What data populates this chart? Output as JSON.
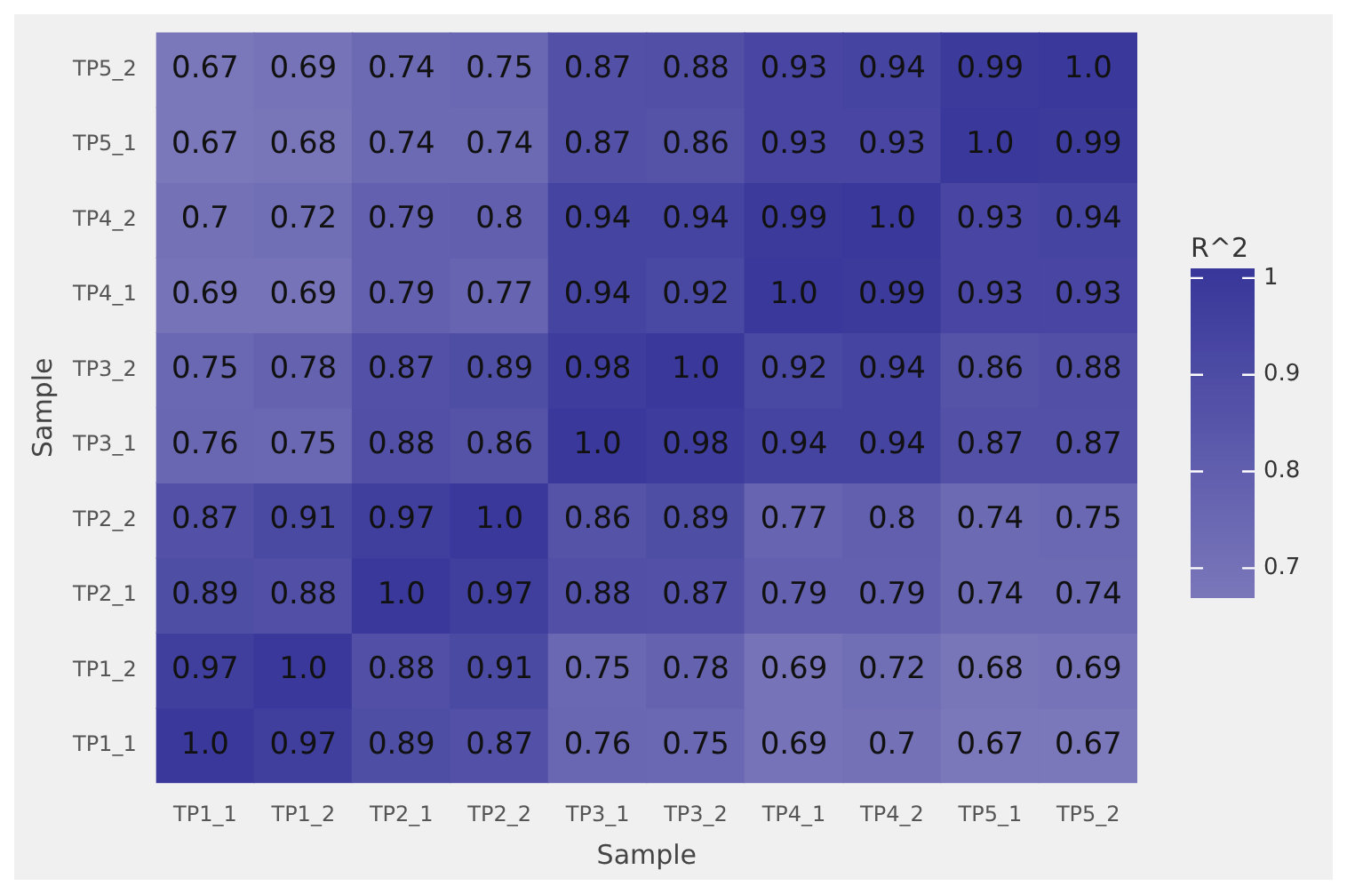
{
  "chart_data": {
    "type": "heatmap",
    "xlabel": "Sample",
    "ylabel": "Sample",
    "clabel": "R^2",
    "categories": [
      "TP1_1",
      "TP1_2",
      "TP2_1",
      "TP2_2",
      "TP3_1",
      "TP3_2",
      "TP4_1",
      "TP4_2",
      "TP5_1",
      "TP5_2"
    ],
    "y_categories": [
      "TP5_2",
      "TP5_1",
      "TP4_2",
      "TP4_1",
      "TP3_2",
      "TP3_1",
      "TP2_2",
      "TP2_1",
      "TP1_2",
      "TP1_1"
    ],
    "cells": [
      [
        0.67,
        0.69,
        0.74,
        0.75,
        0.87,
        0.88,
        0.93,
        0.94,
        0.99,
        1.0
      ],
      [
        0.67,
        0.68,
        0.74,
        0.74,
        0.87,
        0.86,
        0.93,
        0.93,
        1.0,
        0.99
      ],
      [
        0.7,
        0.72,
        0.79,
        0.8,
        0.94,
        0.94,
        0.99,
        1.0,
        0.93,
        0.94
      ],
      [
        0.69,
        0.69,
        0.79,
        0.77,
        0.94,
        0.92,
        1.0,
        0.99,
        0.93,
        0.93
      ],
      [
        0.75,
        0.78,
        0.87,
        0.89,
        0.98,
        1.0,
        0.92,
        0.94,
        0.86,
        0.88
      ],
      [
        0.76,
        0.75,
        0.88,
        0.86,
        1.0,
        0.98,
        0.94,
        0.94,
        0.87,
        0.87
      ],
      [
        0.87,
        0.91,
        0.97,
        1.0,
        0.86,
        0.89,
        0.77,
        0.8,
        0.74,
        0.75
      ],
      [
        0.89,
        0.88,
        1.0,
        0.97,
        0.88,
        0.87,
        0.79,
        0.79,
        0.74,
        0.74
      ],
      [
        0.97,
        1.0,
        0.88,
        0.91,
        0.75,
        0.78,
        0.69,
        0.72,
        0.68,
        0.69
      ],
      [
        1.0,
        0.97,
        0.89,
        0.87,
        0.76,
        0.75,
        0.69,
        0.7,
        0.67,
        0.67
      ]
    ],
    "cell_labels": [
      [
        "0.67",
        "0.69",
        "0.74",
        "0.75",
        "0.87",
        "0.88",
        "0.93",
        "0.94",
        "0.99",
        "1.0"
      ],
      [
        "0.67",
        "0.68",
        "0.74",
        "0.74",
        "0.87",
        "0.86",
        "0.93",
        "0.93",
        "1.0",
        "0.99"
      ],
      [
        "0.7",
        "0.72",
        "0.79",
        "0.8",
        "0.94",
        "0.94",
        "0.99",
        "1.0",
        "0.93",
        "0.94"
      ],
      [
        "0.69",
        "0.69",
        "0.79",
        "0.77",
        "0.94",
        "0.92",
        "1.0",
        "0.99",
        "0.93",
        "0.93"
      ],
      [
        "0.75",
        "0.78",
        "0.87",
        "0.89",
        "0.98",
        "1.0",
        "0.92",
        "0.94",
        "0.86",
        "0.88"
      ],
      [
        "0.76",
        "0.75",
        "0.88",
        "0.86",
        "1.0",
        "0.98",
        "0.94",
        "0.94",
        "0.87",
        "0.87"
      ],
      [
        "0.87",
        "0.91",
        "0.97",
        "1.0",
        "0.86",
        "0.89",
        "0.77",
        "0.8",
        "0.74",
        "0.75"
      ],
      [
        "0.89",
        "0.88",
        "1.0",
        "0.97",
        "0.88",
        "0.87",
        "0.79",
        "0.79",
        "0.74",
        "0.74"
      ],
      [
        "0.97",
        "1.0",
        "0.88",
        "0.91",
        "0.75",
        "0.78",
        "0.69",
        "0.72",
        "0.68",
        "0.69"
      ],
      [
        "1.0",
        "0.97",
        "0.89",
        "0.87",
        "0.76",
        "0.75",
        "0.69",
        "0.7",
        "0.67",
        "0.67"
      ]
    ],
    "clim": [
      0.67,
      1.01
    ],
    "cticks": [
      0.7,
      0.8,
      0.9,
      1
    ]
  }
}
